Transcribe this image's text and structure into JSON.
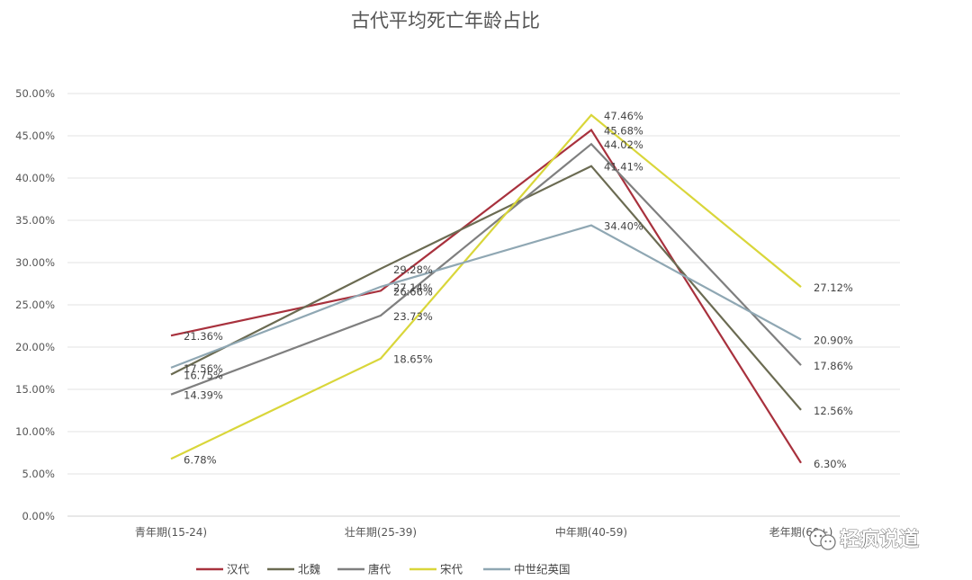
{
  "chart_data": {
    "type": "line",
    "title": "古代平均死亡年龄占比",
    "xlabel": "",
    "ylabel": "",
    "categories": [
      "青年期(15-24)",
      "壮年期(25-39)",
      "中年期(40-59)",
      "老年期(60+)"
    ],
    "ylim": [
      0,
      50
    ],
    "yticks": [
      "0.00%",
      "5.00%",
      "10.00%",
      "15.00%",
      "20.00%",
      "25.00%",
      "30.00%",
      "35.00%",
      "40.00%",
      "45.00%",
      "50.00%"
    ],
    "grid": true,
    "legend_position": "bottom",
    "series": [
      {
        "name": "汉代",
        "color": "#a8313d",
        "values": [
          21.36,
          26.66,
          45.68,
          6.3
        ],
        "labels": [
          "21.36%",
          "26.66%",
          "45.68%",
          "6.30%"
        ]
      },
      {
        "name": "北魏",
        "color": "#6b6b52",
        "values": [
          16.75,
          29.28,
          41.41,
          12.56
        ],
        "labels": [
          "16.75%",
          "29.28%",
          "41.41%",
          "12.56%"
        ]
      },
      {
        "name": "唐代",
        "color": "#7f7f7f",
        "values": [
          14.39,
          23.73,
          44.02,
          17.86
        ],
        "labels": [
          "14.39%",
          "23.73%",
          "44.02%",
          "17.86%"
        ]
      },
      {
        "name": "宋代",
        "color": "#d9d63a",
        "values": [
          6.78,
          18.65,
          47.46,
          27.12
        ],
        "labels": [
          "6.78%",
          "18.65%",
          "47.46%",
          "27.12%"
        ]
      },
      {
        "name": "中世纪英国",
        "color": "#8fa7b3",
        "values": [
          17.56,
          27.14,
          34.4,
          20.9
        ],
        "labels": [
          "17.56%",
          "27.14%",
          "34.40%",
          "20.90%"
        ]
      }
    ]
  },
  "watermark": {
    "icon": "wechat-icon",
    "text": "轻疯说道"
  }
}
